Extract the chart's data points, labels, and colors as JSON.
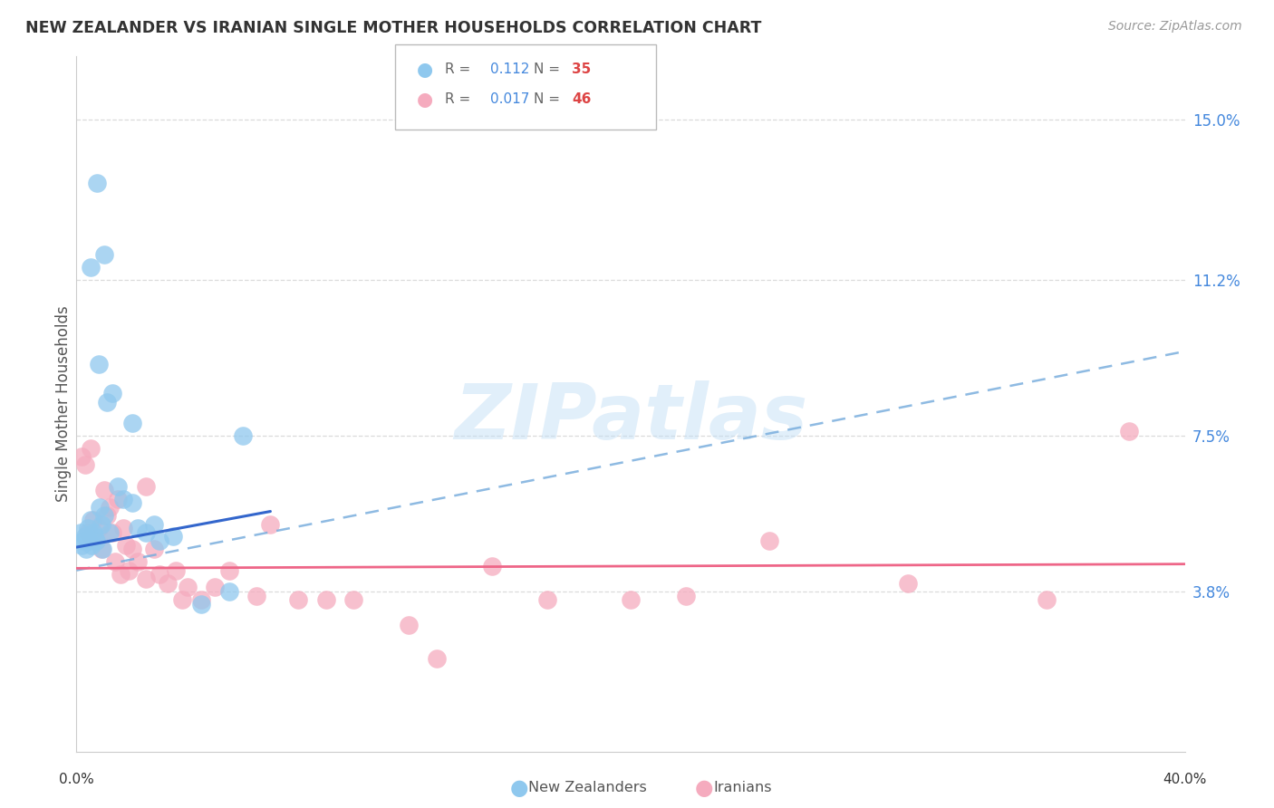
{
  "title": "NEW ZEALANDER VS IRANIAN SINGLE MOTHER HOUSEHOLDS CORRELATION CHART",
  "source": "Source: ZipAtlas.com",
  "ylabel": "Single Mother Households",
  "yticks": [
    3.8,
    7.5,
    11.2,
    15.0
  ],
  "xlim": [
    0.0,
    40.0
  ],
  "ylim": [
    0.0,
    16.5
  ],
  "R_nz": 0.112,
  "N_nz": 35,
  "R_ir": 0.017,
  "N_ir": 46,
  "nz_color": "#8FC8EE",
  "ir_color": "#F5ABBE",
  "nz_line_solid_color": "#3366CC",
  "nz_line_dash_color": "#7AAEDD",
  "ir_line_color": "#EE6688",
  "watermark": "ZIPatlas",
  "background_color": "#ffffff",
  "grid_color": "#d8d8d8",
  "nz_x": [
    0.15,
    0.2,
    0.25,
    0.3,
    0.35,
    0.4,
    0.45,
    0.5,
    0.55,
    0.6,
    0.65,
    0.7,
    0.75,
    0.8,
    0.85,
    0.9,
    0.95,
    1.0,
    1.1,
    1.2,
    1.3,
    1.5,
    1.7,
    2.0,
    2.2,
    2.5,
    2.8,
    3.5,
    4.5,
    5.5,
    0.5,
    1.0,
    2.0,
    3.0,
    6.0
  ],
  "nz_y": [
    5.2,
    4.9,
    5.0,
    5.1,
    4.8,
    5.3,
    5.0,
    5.5,
    4.9,
    5.2,
    5.1,
    5.0,
    13.5,
    9.2,
    5.8,
    5.4,
    4.8,
    5.6,
    8.3,
    5.2,
    8.5,
    6.3,
    6.0,
    5.9,
    5.3,
    5.2,
    5.4,
    5.1,
    3.5,
    3.8,
    11.5,
    11.8,
    7.8,
    5.0,
    7.5
  ],
  "ir_x": [
    0.2,
    0.3,
    0.4,
    0.5,
    0.6,
    0.7,
    0.8,
    0.9,
    1.0,
    1.1,
    1.2,
    1.3,
    1.4,
    1.5,
    1.6,
    1.7,
    1.8,
    1.9,
    2.0,
    2.2,
    2.5,
    2.8,
    3.0,
    3.3,
    3.6,
    4.0,
    4.5,
    5.0,
    5.5,
    6.5,
    8.0,
    9.0,
    10.0,
    12.0,
    15.0,
    17.0,
    20.0,
    22.0,
    25.0,
    30.0,
    35.0,
    38.0,
    2.5,
    3.8,
    7.0,
    13.0
  ],
  "ir_y": [
    7.0,
    6.8,
    5.2,
    7.2,
    5.5,
    5.0,
    5.3,
    4.8,
    6.2,
    5.6,
    5.8,
    5.2,
    4.5,
    6.0,
    4.2,
    5.3,
    4.9,
    4.3,
    4.8,
    4.5,
    4.1,
    4.8,
    4.2,
    4.0,
    4.3,
    3.9,
    3.6,
    3.9,
    4.3,
    3.7,
    3.6,
    3.6,
    3.6,
    3.0,
    4.4,
    3.6,
    3.6,
    3.7,
    5.0,
    4.0,
    3.6,
    7.6,
    6.3,
    3.6,
    5.4,
    2.2
  ],
  "nz_line_x0": 0.0,
  "nz_line_y0": 4.85,
  "nz_line_x1": 7.0,
  "nz_line_y1": 5.7,
  "nz_dash_x0": 0.0,
  "nz_dash_y0": 4.3,
  "nz_dash_x1": 40.0,
  "nz_dash_y1": 9.5,
  "ir_line_x0": 0.0,
  "ir_line_y0": 4.35,
  "ir_line_x1": 40.0,
  "ir_line_y1": 4.45
}
